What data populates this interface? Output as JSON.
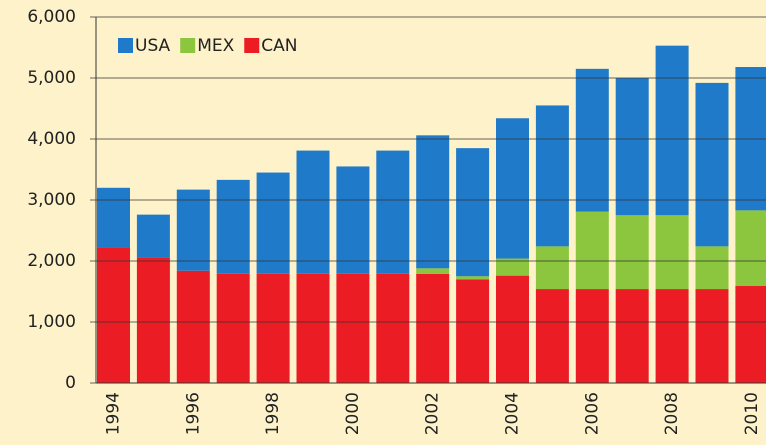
{
  "chart_data": {
    "type": "stacked_bar",
    "categories": [
      "1994",
      null,
      "1996",
      null,
      "1998",
      null,
      "2000",
      null,
      "2002",
      null,
      "2004",
      null,
      "2006",
      null,
      "2008",
      null,
      "2010"
    ],
    "series": [
      {
        "name": "USA",
        "color": "#1f7ac9",
        "values": [
          980,
          700,
          1330,
          1540,
          1660,
          2020,
          1760,
          2020,
          2180,
          2100,
          2300,
          2310,
          2340,
          2250,
          2780,
          2680,
          2350
        ]
      },
      {
        "name": "MEX",
        "color": "#8cc63f",
        "values": [
          0,
          0,
          0,
          0,
          0,
          0,
          0,
          0,
          90,
          50,
          280,
          700,
          1270,
          1210,
          1210,
          700,
          1240
        ]
      },
      {
        "name": "CAN",
        "color": "#ec1c24",
        "values": [
          2220,
          2060,
          1840,
          1790,
          1790,
          1790,
          1790,
          1790,
          1790,
          1700,
          1760,
          1540,
          1540,
          1540,
          1540,
          1540,
          1590
        ]
      }
    ],
    "ylim": [
      0,
      6000
    ],
    "yticks": [
      0,
      {
        "value": 1000,
        "label": "1,000"
      },
      {
        "value": 2000,
        "label": "2,000"
      },
      {
        "value": 3000,
        "label": "3,000"
      },
      {
        "value": 4000,
        "label": "4,000"
      },
      {
        "value": 5000,
        "label": "5,000"
      },
      {
        "value": 6000,
        "label": "6,000"
      }
    ],
    "grid": true,
    "legend": "top-left"
  }
}
